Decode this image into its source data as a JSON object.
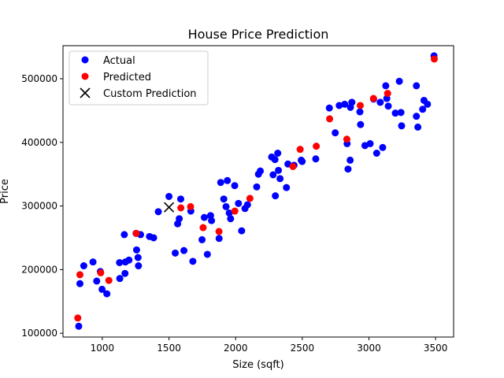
{
  "chart_data": {
    "type": "scatter",
    "title": "House Price Prediction",
    "xlabel": "Size (sqft)",
    "ylabel": "Price",
    "xlim": [
      705,
      3635
    ],
    "ylim": [
      94000,
      552000
    ],
    "x_ticks": [
      1000,
      1500,
      2000,
      2500,
      3000,
      3500
    ],
    "x_tick_labels": [
      "1000",
      "1500",
      "2000",
      "2500",
      "3000",
      "3500"
    ],
    "y_ticks": [
      100000,
      200000,
      300000,
      400000,
      500000
    ],
    "y_tick_labels": [
      "100000",
      "200000",
      "300000",
      "400000",
      "500000"
    ],
    "grid": false,
    "legend_position": "top-left",
    "series": [
      {
        "name": "Actual",
        "color": "#0000ff",
        "marker": "circle",
        "points": [
          [
            823,
            111000
          ],
          [
            832,
            178000
          ],
          [
            861,
            206000
          ],
          [
            930,
            212000
          ],
          [
            958,
            182000
          ],
          [
            985,
            197000
          ],
          [
            998,
            169000
          ],
          [
            1034,
            162000
          ],
          [
            1129,
            211000
          ],
          [
            1131,
            186000
          ],
          [
            1165,
            255000
          ],
          [
            1170,
            194000
          ],
          [
            1173,
            212000
          ],
          [
            1200,
            215000
          ],
          [
            1253,
            257000
          ],
          [
            1257,
            231000
          ],
          [
            1268,
            219000
          ],
          [
            1271,
            206000
          ],
          [
            1287,
            255000
          ],
          [
            1354,
            252000
          ],
          [
            1385,
            250000
          ],
          [
            1420,
            291000
          ],
          [
            1500,
            315000
          ],
          [
            1547,
            226000
          ],
          [
            1565,
            272000
          ],
          [
            1577,
            280000
          ],
          [
            1588,
            311000
          ],
          [
            1612,
            230000
          ],
          [
            1664,
            292000
          ],
          [
            1679,
            213000
          ],
          [
            1748,
            247000
          ],
          [
            1765,
            282000
          ],
          [
            1788,
            224000
          ],
          [
            1812,
            285000
          ],
          [
            1819,
            277000
          ],
          [
            1876,
            249000
          ],
          [
            1888,
            337000
          ],
          [
            1911,
            311000
          ],
          [
            1928,
            299000
          ],
          [
            1938,
            340000
          ],
          [
            1952,
            289000
          ],
          [
            1962,
            280000
          ],
          [
            1993,
            332000
          ],
          [
            2021,
            304000
          ],
          [
            2045,
            261000
          ],
          [
            2070,
            296000
          ],
          [
            2089,
            302000
          ],
          [
            2158,
            330000
          ],
          [
            2171,
            350000
          ],
          [
            2185,
            355000
          ],
          [
            2270,
            377000
          ],
          [
            2281,
            349000
          ],
          [
            2295,
            373000
          ],
          [
            2298,
            316000
          ],
          [
            2316,
            383000
          ],
          [
            2321,
            356000
          ],
          [
            2333,
            343000
          ],
          [
            2381,
            329000
          ],
          [
            2392,
            366000
          ],
          [
            2438,
            364000
          ],
          [
            2492,
            372000
          ],
          [
            2499,
            370000
          ],
          [
            2601,
            374000
          ],
          [
            2703,
            454000
          ],
          [
            2747,
            415000
          ],
          [
            2777,
            458000
          ],
          [
            2818,
            460000
          ],
          [
            2836,
            398000
          ],
          [
            2843,
            358000
          ],
          [
            2859,
            372000
          ],
          [
            2861,
            455000
          ],
          [
            2872,
            463000
          ],
          [
            2932,
            448000
          ],
          [
            2937,
            428000
          ],
          [
            2970,
            395000
          ],
          [
            3009,
            398000
          ],
          [
            3035,
            468000
          ],
          [
            3058,
            383000
          ],
          [
            3085,
            463000
          ],
          [
            3103,
            392000
          ],
          [
            3126,
            489000
          ],
          [
            3134,
            469000
          ],
          [
            3145,
            457000
          ],
          [
            3198,
            446000
          ],
          [
            3228,
            496000
          ],
          [
            3240,
            447000
          ],
          [
            3245,
            426000
          ],
          [
            3356,
            489000
          ],
          [
            3356,
            441000
          ],
          [
            3367,
            424000
          ],
          [
            3403,
            452000
          ],
          [
            3413,
            466000
          ],
          [
            3439,
            460000
          ],
          [
            3488,
            536000
          ]
        ]
      },
      {
        "name": "Predicted",
        "color": "#ff0000",
        "marker": "circle",
        "points": [
          [
            816,
            124000
          ],
          [
            832,
            192000
          ],
          [
            988,
            195000
          ],
          [
            1049,
            183000
          ],
          [
            1255,
            257000
          ],
          [
            1589,
            297000
          ],
          [
            1662,
            299000
          ],
          [
            1756,
            266000
          ],
          [
            1875,
            260000
          ],
          [
            1994,
            292000
          ],
          [
            2107,
            312000
          ],
          [
            2430,
            362000
          ],
          [
            2484,
            389000
          ],
          [
            2605,
            394000
          ],
          [
            2705,
            437000
          ],
          [
            2834,
            405000
          ],
          [
            2935,
            458000
          ],
          [
            3034,
            469000
          ],
          [
            3140,
            477000
          ],
          [
            3490,
            531000
          ]
        ]
      },
      {
        "name": "Custom Prediction",
        "color": "#000000",
        "marker": "x",
        "points": [
          [
            1500,
            298000
          ]
        ]
      }
    ]
  }
}
